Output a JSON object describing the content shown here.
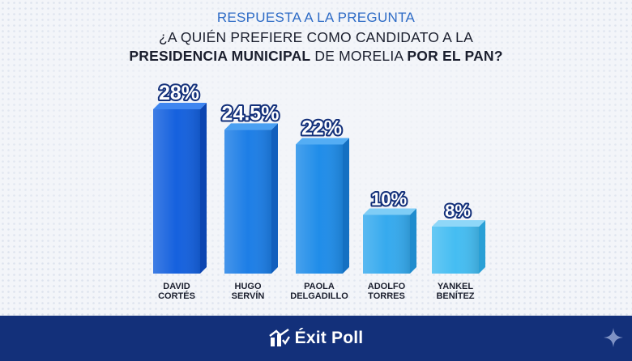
{
  "header": {
    "subtitle": "RESPUESTA A LA PREGUNTA",
    "question_line1": "¿A QUIÉN PREFIERE COMO CANDIDATO A LA",
    "question_line2_bold1": "PRESIDENCIA MUNICIPAL",
    "question_line2_mid": " DE MORELIA ",
    "question_line2_bold2": "POR EL PAN?"
  },
  "footer": {
    "brand": "Éxit Poll",
    "logo_icon": "exit-poll-logo-icon",
    "sparkle_icon": "sparkle-icon"
  },
  "colors": {
    "brand_blue": "#13307a",
    "accent_blue": "#2f6cc6",
    "bar_dark": "#1460de",
    "bar_light": "#3fb2f0"
  },
  "chart_data": {
    "type": "bar",
    "categories": [
      [
        "DAVID",
        "CORTÉS"
      ],
      [
        "HUGO",
        "SERVÍN"
      ],
      [
        "PAOLA",
        "DELGADILLO"
      ],
      [
        "ADOLFO",
        "TORRES"
      ],
      [
        "YANKEL",
        "BENÍTEZ"
      ]
    ],
    "values": [
      28,
      24.5,
      22,
      10,
      8
    ],
    "value_labels": [
      "28%",
      "24.5%",
      "22%",
      "10%",
      "8%"
    ],
    "unit": "%",
    "ylim": [
      0,
      28
    ],
    "grid": false,
    "legend": "none"
  }
}
